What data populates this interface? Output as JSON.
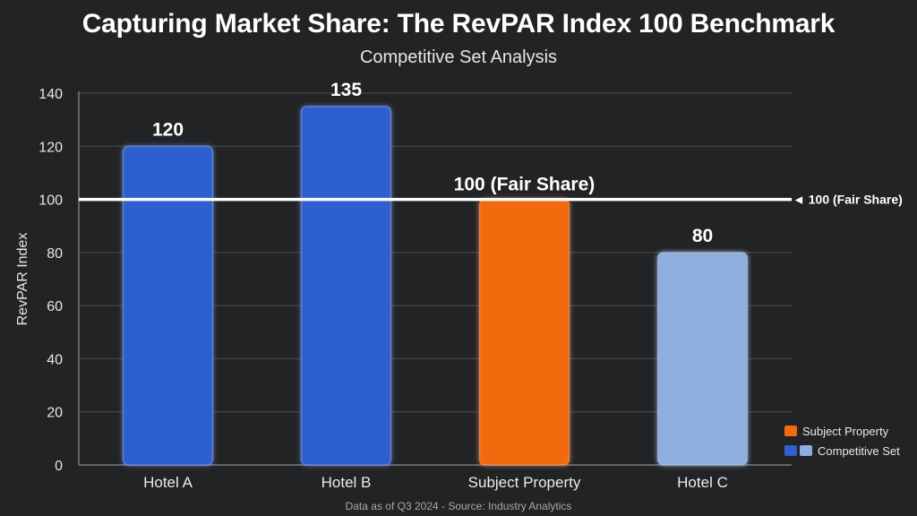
{
  "title": "Capturing Market Share: The RevPAR Index 100 Benchmark",
  "subtitle": "Competitive Set Analysis",
  "footer": "Data as of Q3 2024 - Source: Industry Analytics",
  "chart_data": {
    "type": "bar",
    "categories": [
      "Hotel A",
      "Hotel B",
      "Subject Property",
      "Hotel C"
    ],
    "values": [
      120,
      135,
      100,
      80
    ],
    "value_labels": [
      "120",
      "135",
      "100 (Fair Share)",
      "80"
    ],
    "bar_groups": [
      "Competitive Set",
      "Competitive Set",
      "Subject Property",
      "Competitive Set"
    ],
    "bar_colors": [
      "#2f5fd0",
      "#2f5fd0",
      "#f26a10",
      "#8eaede"
    ],
    "ylabel": "RevPAR Index",
    "xlabel": "",
    "ylim": [
      0,
      140
    ],
    "yticks": [
      0,
      20,
      40,
      60,
      80,
      100,
      120,
      140
    ],
    "grid": true,
    "reference_line": {
      "value": 100,
      "label": "100 (Fair Share)",
      "color": "#ffffff"
    },
    "legend": {
      "position": "bottom-right",
      "entries": [
        {
          "label": "Subject Property",
          "colors": [
            "#f26a10"
          ]
        },
        {
          "label": "Competitive Set",
          "colors": [
            "#2f5fd0",
            "#8eaede"
          ]
        }
      ]
    }
  }
}
